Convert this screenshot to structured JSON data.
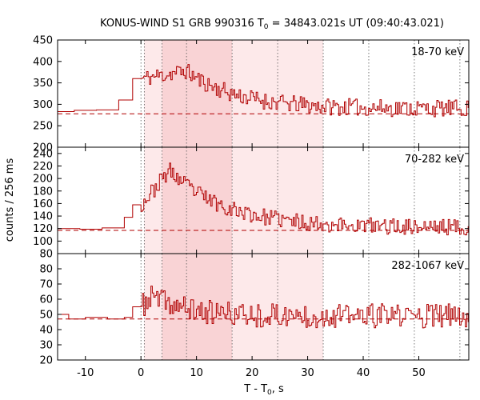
{
  "chart_data": {
    "type": "line",
    "title": "KONUS-WIND S1 GRB 990316 T",
    "title_sub": "0",
    "title_rest": " = 34843.021s UT (09:40:43.021)",
    "xlabel_main": "T - T",
    "xlabel_sub": "0",
    "xlabel_rest": ", s",
    "ylabel": "counts / 256 ms",
    "xlim": [
      -15,
      59
    ],
    "x_ticks": [
      -10,
      0,
      10,
      20,
      30,
      40,
      50
    ],
    "colors": {
      "curve": "#b00000",
      "background_dash": "#b00000",
      "shade_dark": "#f9d3d5",
      "shade_light": "#fde9ea",
      "vline": "#555555"
    },
    "shaded_intervals": [
      {
        "x": [
          3.8,
          16.4
        ],
        "shade": "dark"
      },
      {
        "x": [
          0.6,
          3.8
        ],
        "shade": "light"
      },
      {
        "x": [
          16.4,
          32.8
        ],
        "shade": "light"
      }
    ],
    "vertical_lines": [
      0,
      0.6,
      3.8,
      8.2,
      16.4,
      24.6,
      32.8,
      41.0,
      49.2,
      57.4
    ],
    "panels": [
      {
        "label": "18-70 keV",
        "ylim": [
          200,
          450
        ],
        "y_ticks": [
          200,
          250,
          300,
          350,
          400,
          450
        ],
        "background": 278,
        "pre": [
          [
            -15,
            283
          ],
          [
            -12,
            286
          ],
          [
            -8,
            287
          ],
          [
            -4,
            310
          ],
          [
            -1.5,
            360
          ]
        ],
        "peak": 378,
        "peak_time": 8,
        "tail": 290,
        "decay": 9,
        "noise": 20,
        "seed": 11
      },
      {
        "label": "70-282 keV",
        "ylim": [
          80,
          250
        ],
        "y_ticks": [
          80,
          100,
          120,
          140,
          160,
          180,
          200,
          220,
          240
        ],
        "background": 117,
        "pre": [
          [
            -15,
            120
          ],
          [
            -11,
            119
          ],
          [
            -7,
            121
          ],
          [
            -3,
            138
          ],
          [
            -1.5,
            158
          ]
        ],
        "peak": 213,
        "peak_time": 5,
        "tail": 122,
        "decay": 10,
        "noise": 13,
        "seed": 23
      },
      {
        "label": "282-1067 keV",
        "ylim": [
          20,
          90
        ],
        "y_ticks": [
          20,
          30,
          40,
          50,
          60,
          70,
          80
        ],
        "background": 47,
        "pre": [
          [
            -15,
            50
          ],
          [
            -13,
            47
          ],
          [
            -10,
            48
          ],
          [
            -6,
            47
          ],
          [
            -3,
            48
          ],
          [
            -1.5,
            55
          ]
        ],
        "peak": 62,
        "peak_time": 2,
        "tail": 49,
        "decay": 6,
        "noise": 8,
        "seed": 37
      }
    ]
  }
}
